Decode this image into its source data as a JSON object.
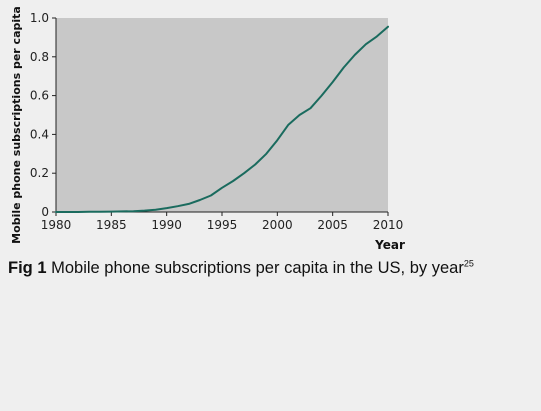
{
  "chart_data": {
    "type": "line",
    "title": "",
    "xlabel": "Year",
    "ylabel": "Mobile phone subscriptions per capita",
    "xlim": [
      1980,
      2010
    ],
    "ylim": [
      0,
      1.0
    ],
    "x_ticks": [
      1980,
      1985,
      1990,
      1995,
      2000,
      2005,
      2010
    ],
    "y_ticks": [
      0,
      0.2,
      0.4,
      0.6,
      0.8,
      1.0
    ],
    "y_tick_labels": [
      "0",
      "0.2",
      "0.4",
      "0.6",
      "0.8",
      "1.0"
    ],
    "grid": false,
    "legend": "none",
    "colors": {
      "plot_background": "#c8c8c8",
      "line": "#1a6b5e",
      "axis": "#222222"
    },
    "series": [
      {
        "x": [
          1980,
          1981,
          1982,
          1983,
          1984,
          1985,
          1986,
          1987,
          1988,
          1989,
          1990,
          1991,
          1992,
          1993,
          1994,
          1995,
          1996,
          1997,
          1998,
          1999,
          2000,
          2001,
          2002,
          2003,
          2004,
          2005,
          2006,
          2007,
          2008,
          2009,
          2010
        ],
        "y": [
          0.0,
          0.0,
          0.0,
          0.001,
          0.001,
          0.002,
          0.003,
          0.004,
          0.007,
          0.012,
          0.02,
          0.03,
          0.042,
          0.062,
          0.085,
          0.125,
          0.16,
          0.2,
          0.245,
          0.3,
          0.37,
          0.45,
          0.5,
          0.535,
          0.6,
          0.67,
          0.745,
          0.81,
          0.865,
          0.905,
          0.955
        ]
      }
    ]
  },
  "caption": {
    "label": "Fig 1",
    "text": " Mobile phone subscriptions per capita in the US, by year",
    "ref": "25"
  }
}
